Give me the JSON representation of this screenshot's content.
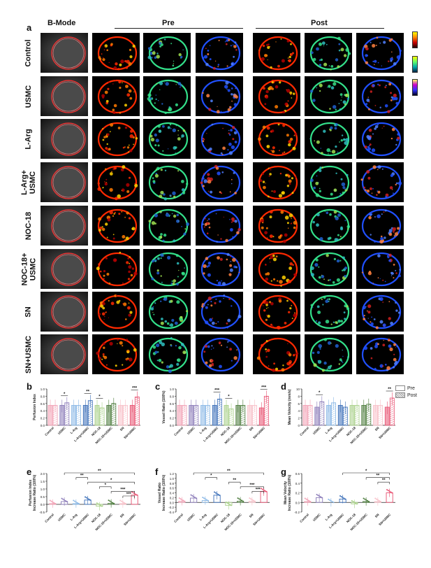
{
  "panel_labels": {
    "a": "a",
    "b": "b",
    "c": "c",
    "d": "d",
    "e": "e",
    "f": "f",
    "g": "g"
  },
  "headers": {
    "bmode": "B-Mode",
    "pre": "Pre",
    "post": "Post"
  },
  "rows": [
    "Control",
    "USMC",
    "L-Arg",
    "L-Arg+\nUSMC",
    "NOC-18",
    "NOC-18+\nUSMC",
    "SN",
    "SN+USMC"
  ],
  "legend": {
    "pre": "Pre",
    "post": "Post"
  },
  "chart_data": [
    {
      "type": "bar",
      "id": "b",
      "ylabel": "Perfusion Index",
      "yticks": [
        "0.0",
        "0.2",
        "0.4",
        "0.6",
        "0.8",
        "1.0"
      ],
      "ylim": [
        0,
        1.0
      ],
      "categories": [
        "Control",
        "USMC",
        "L-Arg",
        "L-Arg+USMC",
        "NOC-18",
        "NOC-18+USMC",
        "SN",
        "SN+USMC"
      ],
      "series": [
        {
          "name": "Pre",
          "values": [
            0.55,
            0.55,
            0.55,
            0.55,
            0.55,
            0.55,
            0.55,
            0.55
          ]
        },
        {
          "name": "Post",
          "values": [
            0.55,
            0.62,
            0.55,
            0.68,
            0.48,
            0.6,
            0.55,
            0.78
          ]
        }
      ],
      "significance": [
        "",
        "*",
        "",
        "**",
        "*",
        "",
        "",
        "***"
      ]
    },
    {
      "type": "bar",
      "id": "c",
      "ylabel": "Vessel Ratio (100%)",
      "yticks": [
        "0.0",
        "0.2",
        "0.4",
        "0.6",
        "0.8",
        "1.0"
      ],
      "ylim": [
        0,
        1.0
      ],
      "categories": [
        "Control",
        "USMC",
        "L-Arg",
        "L-Arg+USMC",
        "NOC-18",
        "NOC-18+USMC",
        "SN",
        "SN+USMC"
      ],
      "series": [
        {
          "name": "Pre",
          "values": [
            0.55,
            0.55,
            0.55,
            0.55,
            0.55,
            0.55,
            0.55,
            0.48
          ]
        },
        {
          "name": "Post",
          "values": [
            0.55,
            0.55,
            0.55,
            0.72,
            0.45,
            0.55,
            0.55,
            0.8
          ]
        }
      ],
      "significance": [
        "",
        "",
        "",
        "***",
        "*",
        "",
        "",
        "***"
      ]
    },
    {
      "type": "bar",
      "id": "d",
      "ylabel": "Mean Velocity (mm/s)",
      "yticks": [
        "0",
        "2",
        "4",
        "6",
        "8",
        "10"
      ],
      "ylim": [
        0,
        10
      ],
      "categories": [
        "Control",
        "USMC",
        "L-Arg",
        "L-Arg+USMC",
        "NOC-18",
        "NOC-18+USMC",
        "SN",
        "SN+USMC"
      ],
      "series": [
        {
          "name": "Pre",
          "values": [
            5.5,
            5.0,
            5.5,
            5.5,
            5.5,
            5.5,
            5.5,
            5.0
          ]
        },
        {
          "name": "Post",
          "values": [
            5.5,
            6.5,
            6.2,
            5.0,
            5.5,
            5.8,
            5.5,
            7.5
          ]
        }
      ],
      "significance": [
        "",
        "*",
        "",
        "",
        "",
        "",
        "",
        "**"
      ]
    },
    {
      "type": "bar",
      "id": "e",
      "ylabel": "Perfusion Index\nIncrease Ratio (100%)",
      "yticks": [
        "-0.5",
        "0.0",
        "0.5",
        "1.0",
        "1.5",
        "2.0"
      ],
      "ylim": [
        -0.5,
        2.0
      ],
      "categories": [
        "Control",
        "USMC",
        "L-Arg",
        "L-Arg+USMC",
        "NOC-18",
        "NOC-18+USMC",
        "SN",
        "SN+USMC"
      ],
      "values": [
        0.05,
        0.18,
        0.05,
        0.28,
        -0.12,
        0.06,
        0.05,
        0.6
      ],
      "significance": [
        {
          "from": 1,
          "to": 7,
          "label": "**"
        },
        {
          "from": 2,
          "to": 3,
          "label": "**"
        },
        {
          "from": 3,
          "to": 7,
          "label": "*"
        },
        {
          "from": 4,
          "to": 5,
          "label": "*"
        },
        {
          "from": 5,
          "to": 7,
          "label": "***"
        },
        {
          "from": 6,
          "to": 7,
          "label": "***"
        }
      ]
    },
    {
      "type": "bar",
      "id": "f",
      "ylabel": "Vessel Ratio\nIncrease Ratio (100%)",
      "yticks": [
        "-0.4",
        "-0.2",
        "0.0",
        "0.2",
        "0.4",
        "0.6",
        "0.8",
        "1.0",
        "1.2"
      ],
      "ylim": [
        -0.4,
        1.2
      ],
      "categories": [
        "Control",
        "USMC",
        "L-Arg",
        "L-Arg+USMC",
        "NOC-18",
        "NOC-18+USMC",
        "SN",
        "SN+USMC"
      ],
      "values": [
        0.05,
        0.18,
        0.08,
        0.3,
        -0.12,
        0.05,
        0.05,
        0.45
      ],
      "significance": [
        {
          "from": 1,
          "to": 7,
          "label": "**"
        },
        {
          "from": 2,
          "to": 3,
          "label": "*"
        },
        {
          "from": 4,
          "to": 5,
          "label": "**"
        },
        {
          "from": 5,
          "to": 7,
          "label": "***"
        },
        {
          "from": 6,
          "to": 7,
          "label": "***"
        }
      ]
    },
    {
      "type": "bar",
      "id": "g",
      "ylabel": "Mean Velocity\nIncrease Ratio (100%)",
      "yticks": [
        "-0.2",
        "0.0",
        "0.2",
        "0.4",
        "0.6"
      ],
      "ylim": [
        -0.2,
        0.6
      ],
      "categories": [
        "Control",
        "USMC",
        "L-Arg",
        "L-Arg+USMC",
        "NOC-18",
        "NOC-18+USMC",
        "SN",
        "SN+USMC"
      ],
      "values": [
        0.02,
        0.1,
        0.0,
        0.07,
        -0.03,
        0.02,
        0.02,
        0.2
      ],
      "significance": [
        {
          "from": 3,
          "to": 7,
          "label": "*"
        },
        {
          "from": 5,
          "to": 7,
          "label": "**"
        },
        {
          "from": 6,
          "to": 7,
          "label": "**"
        }
      ]
    }
  ]
}
